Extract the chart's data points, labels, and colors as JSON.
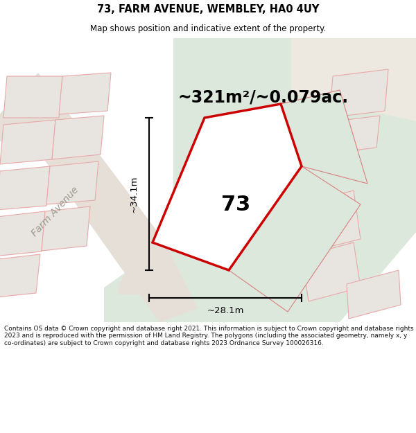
{
  "title_line1": "73, FARM AVENUE, WEMBLEY, HA0 4UY",
  "title_line2": "Map shows position and indicative extent of the property.",
  "area_text": "~321m²/~0.079ac.",
  "number_label": "73",
  "dim_width": "~28.1m",
  "dim_height": "~34.1m",
  "road_label": "Farm Avenue",
  "footer_text": "Contains OS data © Crown copyright and database right 2021. This information is subject to Crown copyright and database rights 2023 and is reproduced with the permission of HM Land Registry. The polygons (including the associated geometry, namely x, y co-ordinates) are subject to Crown copyright and database rights 2023 Ordnance Survey 100026316.",
  "bg_color": "#ffffff",
  "map_bg": "#f5f5f3",
  "highlight_bg": "#dde8dd",
  "road_fill": "#e5dfd8",
  "building_fill": "#e8e4df",
  "building_stroke": "#e8a8a8",
  "plot_stroke": "#cc0000",
  "plot_fill": "#ffffff",
  "road_stroke": "#e0d0d0",
  "title_color": "#000000",
  "footer_color": "#111111",
  "dim_color": "#222222"
}
